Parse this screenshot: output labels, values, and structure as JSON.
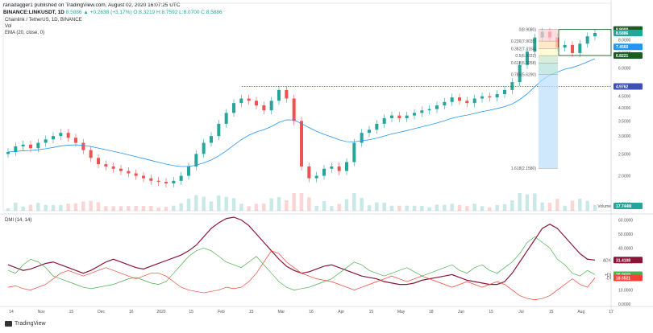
{
  "header": {
    "publish_line": "ranadagger1 published on TradingView.com, August 02, 2020 16:07:25 UTC",
    "symbol_line": "BINANCE:LINKUSDT, 1D",
    "ohlc": "8.5886 ▲ +0.2638 (+3.17%) O:8.3219 H:8.7592 L:8.0700 C:8.5886"
  },
  "legend": {
    "title": "Chainlink / TetherUS, 1D, BINANCE",
    "vol": "Vol",
    "ema": "EMA (20, close, 0)",
    "dmi": "DMI (14, 14)"
  },
  "brand": {
    "name": "TradingView"
  },
  "colors": {
    "up": "#26a69a",
    "down": "#ef5350",
    "ema": "#2196f3",
    "adx": "#8b1538",
    "plus_di": "#4caf50",
    "minus_di": "#f44336",
    "support": "#3f51b5",
    "box": "#1b5e20"
  },
  "chart_data": [
    {
      "type": "candlestick",
      "title": "Chainlink / TetherUS, 1D, BINANCE",
      "x_ticks": [
        "14",
        "Nov",
        "15",
        "Dec",
        "16",
        "2020",
        "15",
        "Feb",
        "15",
        "Mar",
        "16",
        "Apr",
        "15",
        "May",
        "18",
        "Jun",
        "15",
        "Jul",
        "15",
        "Aug",
        "17"
      ],
      "y_ticks": [
        "9.0000",
        "8.0000",
        "7.0000",
        "6.0000",
        "5.0000",
        "4.5000",
        "4.0000",
        "3.5000",
        "3.0000",
        "2.5000",
        "2.0000",
        "1.5000"
      ],
      "ylim": [
        1.4,
        9.4
      ],
      "close_series": [
        2.55,
        2.7,
        2.75,
        2.65,
        2.8,
        2.9,
        3.0,
        3.1,
        2.95,
        2.8,
        2.6,
        2.4,
        2.25,
        2.2,
        2.15,
        2.1,
        2.05,
        2.0,
        1.95,
        1.9,
        1.88,
        1.85,
        1.9,
        2.0,
        2.2,
        2.5,
        2.8,
        3.0,
        3.4,
        3.8,
        4.2,
        4.4,
        4.3,
        4.1,
        3.9,
        4.3,
        4.8,
        4.4,
        3.5,
        2.2,
        1.95,
        2.0,
        2.15,
        2.2,
        2.1,
        2.3,
        2.8,
        3.1,
        3.2,
        3.4,
        3.6,
        3.7,
        3.6,
        3.7,
        3.8,
        3.9,
        3.95,
        4.1,
        4.25,
        4.45,
        4.3,
        4.2,
        4.4,
        4.5,
        4.45,
        4.6,
        4.8,
        5.2,
        6.2,
        7.1,
        8.2,
        8.7,
        8.2,
        7.4,
        7.6,
        7.0,
        7.7,
        8.3,
        8.59
      ],
      "current_price": "8.5886",
      "price_tags": [
        {
          "label": "8.9000",
          "value": 8.9,
          "color": "#1b5e20"
        },
        {
          "label": "8.5886",
          "value": 8.5886,
          "color": "#26a69a"
        },
        {
          "label": "7.4560",
          "value": 7.456,
          "color": "#2196f3"
        },
        {
          "label": "6.8221",
          "value": 6.8221,
          "color": "#1b5e20"
        },
        {
          "label": "4.9762",
          "value": 4.9762,
          "color": "#3f51b5"
        }
      ],
      "volume_tag": "17.744M",
      "volume_label": "Volume",
      "annotations": {
        "fib_levels": [
          {
            "label": "0(8.9080)",
            "value": 8.908
          },
          {
            "label": "0.236(7.9035)",
            "value": 7.9035
          },
          {
            "label": "0.382(7.3164)",
            "value": 7.3164
          },
          {
            "label": "0.5(6.8221)",
            "value": 6.8221
          },
          {
            "label": "0.618(6.3258)",
            "value": 6.3258
          },
          {
            "label": "0.786(5.6290)",
            "value": 5.629
          },
          {
            "label": "1.618(2.1580)",
            "value": 2.158
          }
        ],
        "support_level": 4.9762,
        "box_top": 8.9,
        "box_bottom": 6.8221
      }
    },
    {
      "type": "line",
      "title": "DMI (14, 14)",
      "y_ticks": [
        "60.0000",
        "50.0000",
        "40.0000",
        "30.0000",
        "20.0000",
        "10.0000",
        "0.0000"
      ],
      "ylim": [
        0,
        62
      ],
      "series": [
        {
          "name": "ADX",
          "label": "ADX",
          "tag": "31.4108",
          "value": 31.4108,
          "values": [
            28,
            26,
            24,
            25,
            27,
            29,
            30,
            28,
            26,
            24,
            22,
            24,
            27,
            30,
            32,
            30,
            28,
            26,
            25,
            27,
            29,
            31,
            33,
            35,
            38,
            42,
            48,
            54,
            58,
            61,
            62,
            60,
            56,
            50,
            44,
            38,
            32,
            27,
            24,
            22,
            23,
            25,
            27,
            28,
            26,
            24,
            22,
            20,
            19,
            18,
            16,
            15,
            14,
            14,
            15,
            17,
            18,
            19,
            20,
            21,
            19,
            17,
            16,
            15,
            14,
            14,
            16,
            22,
            30,
            38,
            46,
            54,
            57,
            54,
            48,
            42,
            36,
            32,
            31.4
          ]
        },
        {
          "name": "+DI",
          "label": "+DI",
          "tag": "20.9669",
          "value": 20.9669,
          "values": [
            24,
            22,
            28,
            32,
            30,
            26,
            20,
            18,
            16,
            14,
            12,
            11,
            12,
            13,
            14,
            16,
            18,
            19,
            17,
            15,
            14,
            16,
            22,
            28,
            34,
            38,
            40,
            38,
            34,
            30,
            28,
            26,
            30,
            34,
            28,
            22,
            16,
            12,
            10,
            11,
            12,
            14,
            16,
            18,
            22,
            26,
            30,
            28,
            24,
            22,
            20,
            22,
            24,
            26,
            23,
            20,
            22,
            24,
            26,
            28,
            24,
            22,
            26,
            28,
            24,
            22,
            26,
            30,
            36,
            44,
            48,
            44,
            40,
            32,
            28,
            22,
            20,
            24,
            21
          ]
        },
        {
          "name": "-DI",
          "label": "-DI",
          "tag": "18.6521",
          "value": 18.6521,
          "values": [
            12,
            13,
            11,
            10,
            12,
            14,
            18,
            22,
            24,
            22,
            20,
            22,
            24,
            26,
            24,
            22,
            20,
            18,
            20,
            22,
            22,
            20,
            16,
            12,
            10,
            9,
            8,
            9,
            10,
            12,
            11,
            12,
            16,
            22,
            30,
            38,
            36,
            30,
            26,
            22,
            20,
            18,
            17,
            16,
            14,
            12,
            10,
            12,
            14,
            16,
            18,
            20,
            18,
            16,
            18,
            20,
            18,
            16,
            14,
            12,
            14,
            16,
            14,
            12,
            14,
            16,
            14,
            10,
            6,
            4,
            3,
            4,
            6,
            10,
            14,
            18,
            14,
            12,
            18.65
          ]
        }
      ],
      "x_ticks": [
        "14",
        "Nov",
        "15",
        "Dec",
        "16",
        "2020",
        "15",
        "Feb",
        "15",
        "Mar",
        "16",
        "Apr",
        "15",
        "May",
        "18",
        "Jun",
        "15",
        "Jul",
        "15",
        "Aug",
        "17"
      ]
    }
  ]
}
